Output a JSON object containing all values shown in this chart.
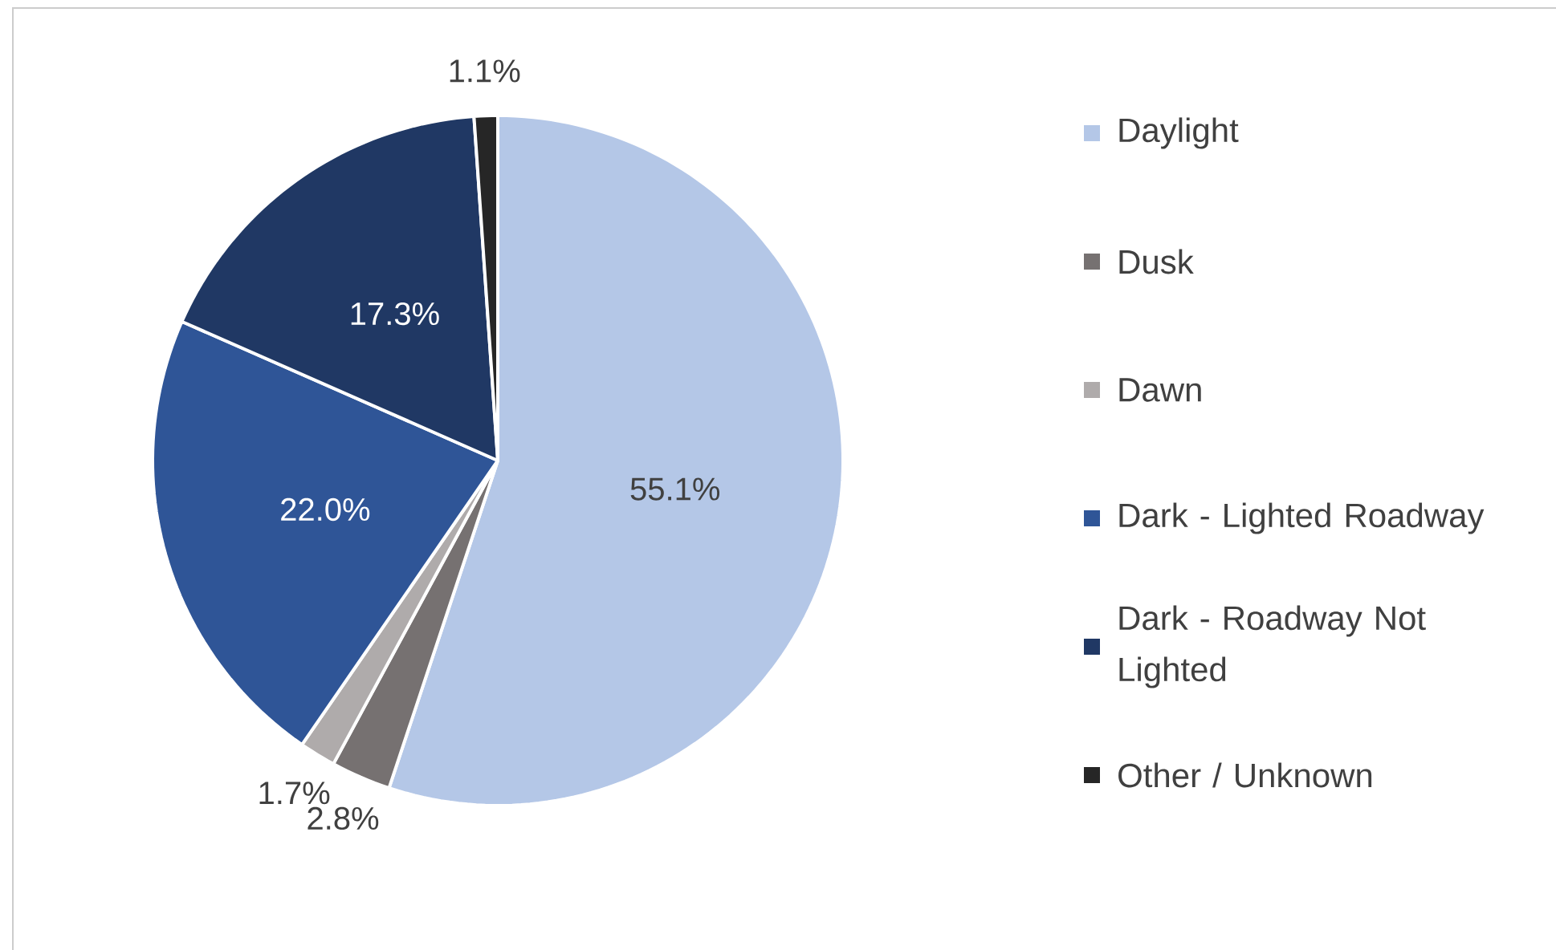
{
  "chart_data": {
    "type": "pie",
    "categories": [
      "Daylight",
      "Dusk",
      "Dawn",
      "Dark - Lighted Roadway",
      "Dark - Roadway Not Lighted",
      "Other / Unknown"
    ],
    "values": [
      55.1,
      2.8,
      1.7,
      22.0,
      17.3,
      1.1
    ],
    "value_labels": [
      "55.1%",
      "2.8%",
      "1.7%",
      "22.0%",
      "17.3%",
      "1.1%"
    ],
    "colors": [
      "#b4c7e7",
      "#767171",
      "#afabab",
      "#2f5597",
      "#203864",
      "#262626"
    ],
    "legend": "right"
  }
}
